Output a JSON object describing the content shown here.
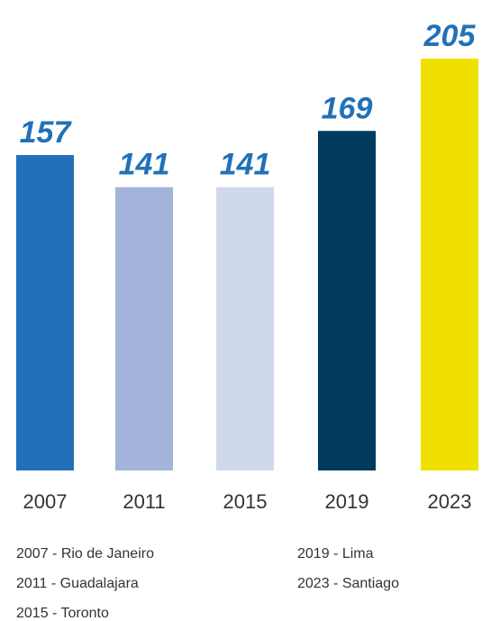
{
  "chart_data": {
    "type": "bar",
    "categories": [
      "2007",
      "2011",
      "2015",
      "2019",
      "2023"
    ],
    "values": [
      157,
      141,
      141,
      169,
      205
    ],
    "colors": [
      "#2271b8",
      "#a2b4db",
      "#d0d9ec",
      "#003a5d",
      "#f0e000"
    ],
    "notes": [
      "2007 - Rio de Janeiro",
      "2011 - Guadalajara",
      "2015 - Toronto",
      "2019 - Lima",
      "2023 - Santiago"
    ]
  }
}
